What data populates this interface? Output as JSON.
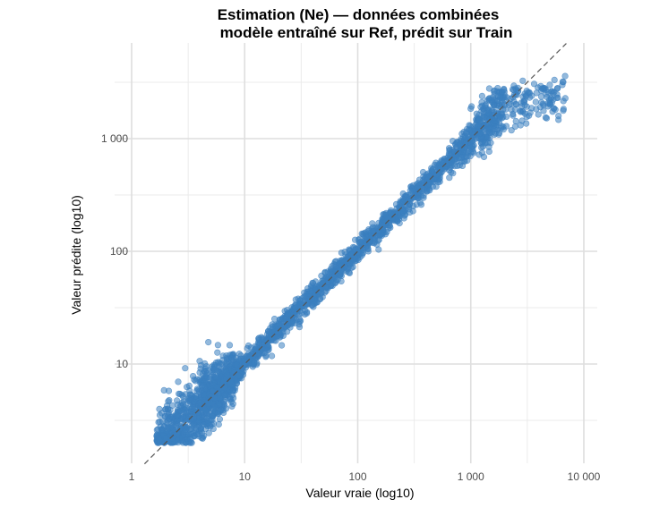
{
  "chart_data": {
    "type": "scatter",
    "title": "Estimation (Ne) — données combinées",
    "subtitle": "modèle entraîné sur Ref, prédit sur Train",
    "xlabel": "Valeur vraie (log10)",
    "ylabel": "Valeur prédite (log10)",
    "xscale": "log10",
    "yscale": "log10",
    "xlim": [
      1,
      11000
    ],
    "ylim": [
      1.4,
      6500
    ],
    "x_ticks": [
      1,
      10,
      100,
      1000,
      10000
    ],
    "x_tick_labels": [
      "1",
      "10",
      "100",
      "1 000",
      "10 000"
    ],
    "y_ticks": [
      10,
      100,
      1000
    ],
    "y_tick_labels": [
      "10",
      "100",
      "1 000"
    ],
    "grid": true,
    "reference_line": {
      "type": "y = x",
      "style": "dashed",
      "color": "#555555"
    },
    "point_color": "#3a7fbf",
    "point_opacity": 0.55,
    "series": [
      {
        "name": "Ne",
        "true_range": [
          1.3,
          7000
        ],
        "density_note": "very dense cloud along the y = x line, widening at both ends",
        "sample_points": [
          {
            "x": 2,
            "y": 2.2
          },
          {
            "x": 2.5,
            "y": 3.5
          },
          {
            "x": 3,
            "y": 2.6
          },
          {
            "x": 4,
            "y": 4.5
          },
          {
            "x": 5,
            "y": 5.2
          },
          {
            "x": 7,
            "y": 8
          },
          {
            "x": 10,
            "y": 10
          },
          {
            "x": 20,
            "y": 19
          },
          {
            "x": 50,
            "y": 52
          },
          {
            "x": 100,
            "y": 98
          },
          {
            "x": 200,
            "y": 210
          },
          {
            "x": 500,
            "y": 480
          },
          {
            "x": 1000,
            "y": 1000
          },
          {
            "x": 2000,
            "y": 2200
          },
          {
            "x": 3000,
            "y": 2500
          },
          {
            "x": 5000,
            "y": 3000
          },
          {
            "x": 6500,
            "y": 3200
          }
        ]
      }
    ]
  }
}
